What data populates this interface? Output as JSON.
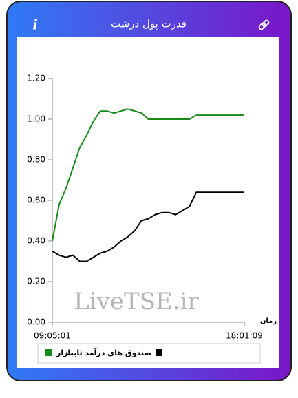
{
  "header": {
    "title": "قدرت پول درشت",
    "info_icon": "i"
  },
  "watermark": "LiveTSE.ir",
  "chart_data": {
    "type": "line",
    "x_label": "زمان",
    "categories": [
      "09:05:01",
      null,
      null,
      null,
      null,
      null,
      null,
      null,
      null,
      null,
      null,
      null,
      null,
      null,
      null,
      null,
      null,
      null,
      null,
      null,
      null,
      null,
      null,
      null,
      null,
      null,
      null,
      null,
      "18:01:09"
    ],
    "series": [
      {
        "name": "بازار",
        "color": "#1a8a1a",
        "values": [
          0.4,
          0.58,
          0.66,
          0.76,
          0.86,
          0.92,
          0.99,
          1.04,
          1.04,
          1.03,
          1.04,
          1.05,
          1.04,
          1.03,
          1.0,
          1.0,
          1.0,
          1.0,
          1.0,
          1.0,
          1.0,
          1.02,
          1.02,
          1.02,
          1.02,
          1.02,
          1.02,
          1.02,
          1.02
        ]
      },
      {
        "name": "صندوق های درآمد ثابت",
        "color": "#000000",
        "values": [
          0.35,
          0.33,
          0.32,
          0.33,
          0.3,
          0.3,
          0.32,
          0.34,
          0.35,
          0.37,
          0.4,
          0.42,
          0.45,
          0.5,
          0.51,
          0.53,
          0.54,
          0.54,
          0.53,
          0.55,
          0.57,
          0.64,
          0.64,
          0.64,
          0.64,
          0.64,
          0.64,
          0.64,
          0.64
        ]
      }
    ],
    "ylim": [
      0,
      1.2
    ],
    "yticks": [
      {
        "value": 0,
        "label": "0.00"
      },
      {
        "value": 0.2,
        "label": "0.20"
      },
      {
        "value": 0.4,
        "label": "0.40"
      },
      {
        "value": 0.6,
        "label": "0.60"
      },
      {
        "value": 0.8,
        "label": "0.80"
      },
      {
        "value": 1,
        "label": "1.00"
      },
      {
        "value": 1.2,
        "label": "1.20"
      }
    ],
    "grid": false
  }
}
